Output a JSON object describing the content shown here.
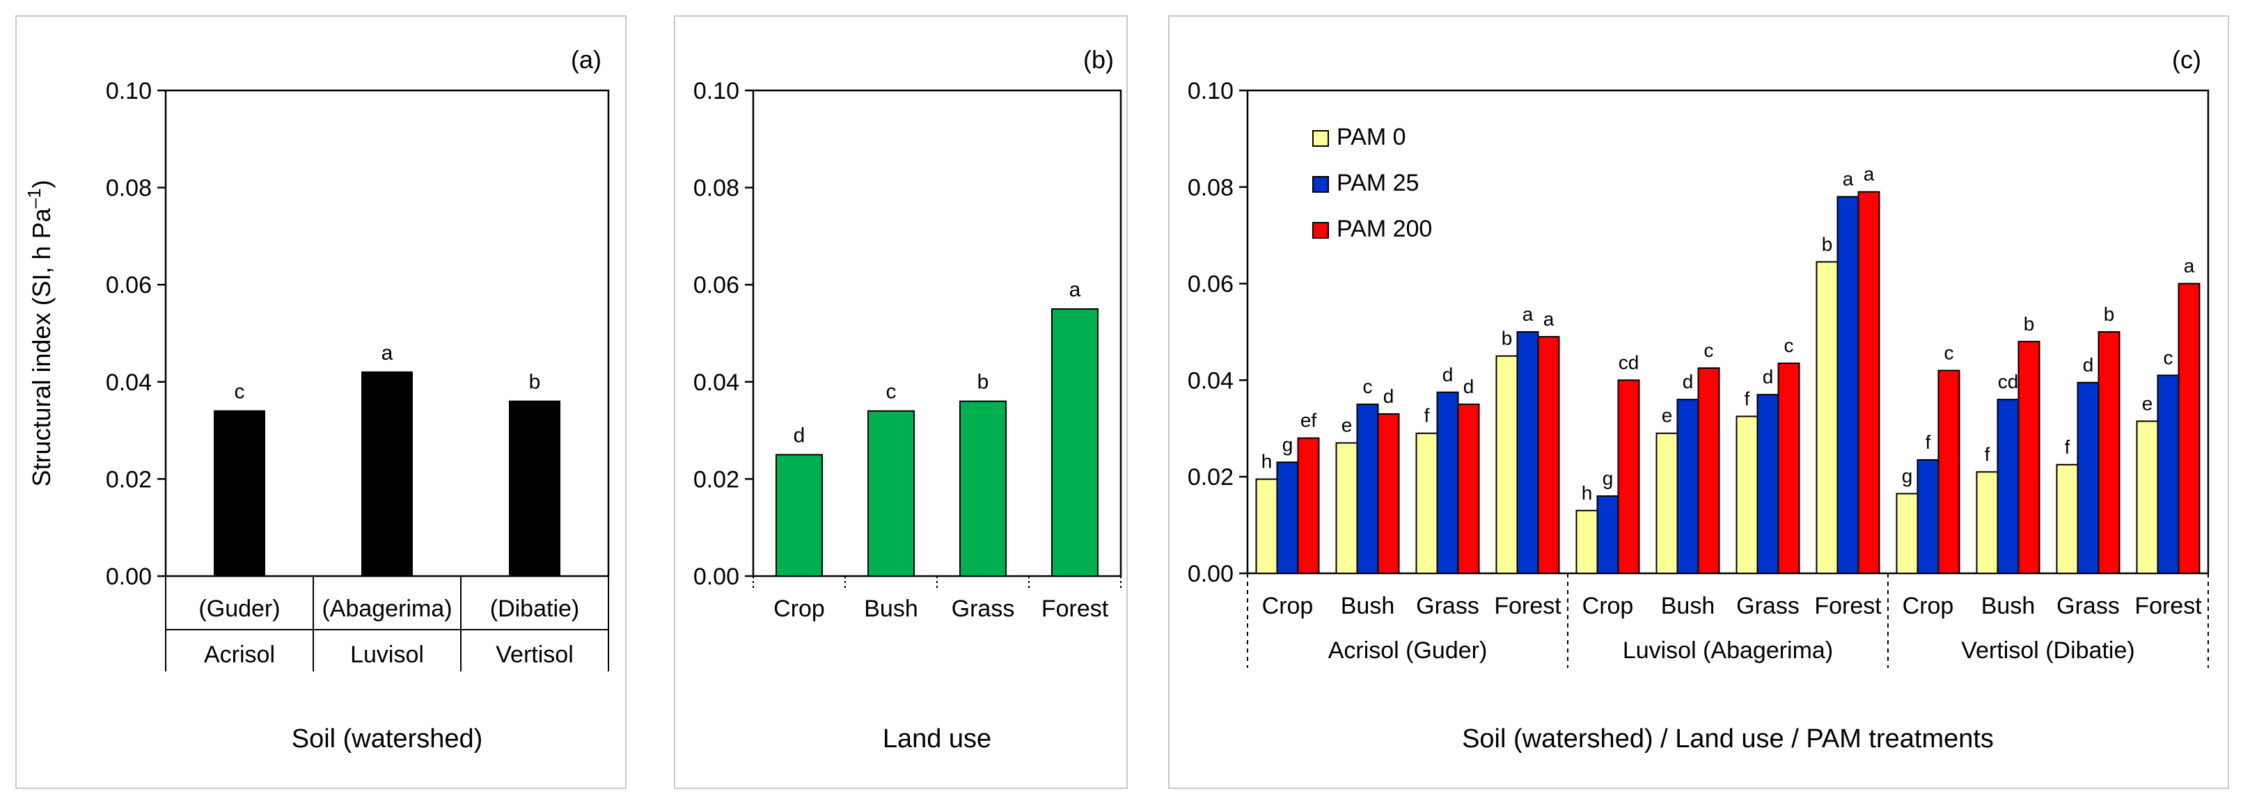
{
  "chart_data": [
    {
      "type": "bar",
      "panel_label": "(a)",
      "ylabel_main": "Structural index (SI, h Pa",
      "ylabel_sup": "–1",
      "ylabel_close": ")",
      "xlabel": "Soil (watershed)",
      "ylim": [
        0,
        0.1
      ],
      "yticks": [
        "0.00",
        "0.02",
        "0.04",
        "0.06",
        "0.08",
        "0.10"
      ],
      "categories": [
        "(Guder)",
        "(Abagerima)",
        "(Dibatie)"
      ],
      "groups": [
        "Acrisol",
        "Luvisol",
        "Vertisol"
      ],
      "values": [
        0.034,
        0.042,
        0.036
      ],
      "letters": [
        "c",
        "a",
        "b"
      ],
      "color": "#000000"
    },
    {
      "type": "bar",
      "panel_label": "(b)",
      "xlabel": "Land use",
      "ylim": [
        0,
        0.1
      ],
      "yticks": [
        "0.00",
        "0.02",
        "0.04",
        "0.06",
        "0.08",
        "0.10"
      ],
      "categories": [
        "Crop",
        "Bush",
        "Grass",
        "Forest"
      ],
      "values": [
        0.025,
        0.034,
        0.036,
        0.055
      ],
      "letters": [
        "d",
        "c",
        "b",
        "a"
      ],
      "color": "#00b050"
    },
    {
      "type": "bar",
      "panel_label": "(c)",
      "xlabel": "Soil (watershed) / Land use / PAM treatments",
      "ylim": [
        0,
        0.1
      ],
      "yticks": [
        "0.00",
        "0.02",
        "0.04",
        "0.06",
        "0.08",
        "0.10"
      ],
      "categories": [
        "Crop",
        "Bush",
        "Grass",
        "Forest",
        "Crop",
        "Bush",
        "Grass",
        "Forest",
        "Crop",
        "Bush",
        "Grass",
        "Forest"
      ],
      "groups": [
        "Acrisol (Guder)",
        "Luvisol (Abagerima)",
        "Vertisol (Dibatie)"
      ],
      "series": [
        {
          "name": "PAM 0",
          "color": "#ffff99",
          "values": [
            0.0195,
            0.027,
            0.029,
            0.045,
            0.013,
            0.029,
            0.0325,
            0.0645,
            0.0165,
            0.021,
            0.0225,
            0.0315
          ],
          "letters": [
            "h",
            "e",
            "f",
            "b",
            "h",
            "e",
            "f",
            "b",
            "g",
            "f",
            "f",
            "e"
          ]
        },
        {
          "name": "PAM 25",
          "color": "#0033cc",
          "values": [
            0.023,
            0.035,
            0.0375,
            0.05,
            0.016,
            0.036,
            0.037,
            0.078,
            0.0235,
            0.036,
            0.0395,
            0.041
          ],
          "letters": [
            "g",
            "c",
            "d",
            "a",
            "g",
            "d",
            "d",
            "a",
            "f",
            "cd",
            "d",
            "c"
          ]
        },
        {
          "name": "PAM 200",
          "color": "#ff0000",
          "values": [
            0.028,
            0.033,
            0.035,
            0.049,
            0.04,
            0.0425,
            0.0435,
            0.079,
            0.042,
            0.048,
            0.05,
            0.06
          ],
          "letters": [
            "ef",
            "d",
            "d",
            "a",
            "cd",
            "c",
            "c",
            "a",
            "c",
            "b",
            "b",
            "a"
          ]
        }
      ],
      "legend": [
        "PAM 0",
        "PAM 25",
        "PAM 200"
      ]
    }
  ]
}
